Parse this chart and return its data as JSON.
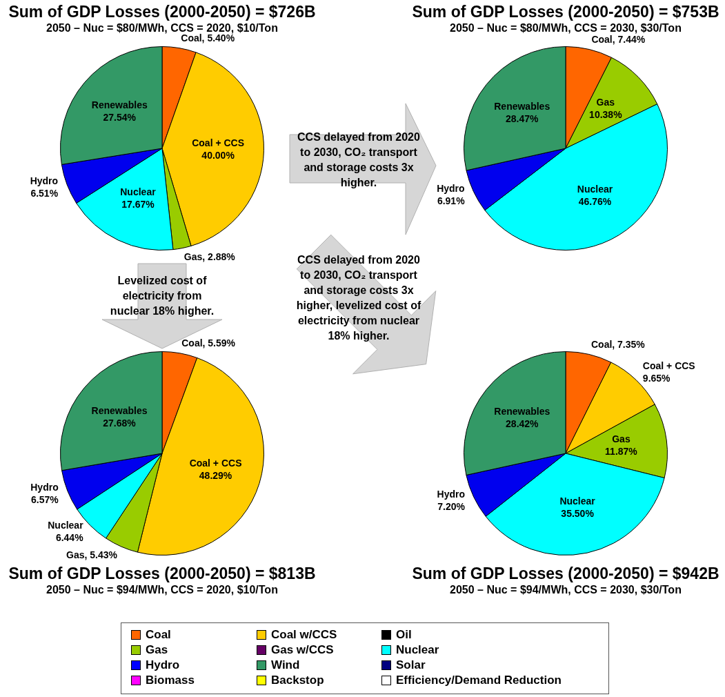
{
  "chart_data": [
    {
      "type": "pie",
      "title": "Sum of GDP Losses (2000-2050) = $726B",
      "subtitle": "2050 – Nuc = $80/MWh, CCS = 2020, $10/Ton",
      "categories": [
        "Coal",
        "Coal + CCS",
        "Gas",
        "Nuclear",
        "Hydro",
        "Renewables"
      ],
      "values": [
        5.4,
        40.0,
        2.88,
        17.67,
        6.51,
        27.54
      ],
      "value_labels": [
        "5.40%",
        "40.00%",
        "2.88%",
        "17.67%",
        "6.51%",
        "27.54%"
      ],
      "colors": [
        "#ff6600",
        "#ffcc00",
        "#99cc00",
        "#00ffff",
        "#0000ee",
        "#339966"
      ]
    },
    {
      "type": "pie",
      "title": "Sum of GDP Losses (2000-2050) = $753B",
      "subtitle": "2050 – Nuc = $80/MWh, CCS = 2030, $30/Ton",
      "categories": [
        "Coal",
        "Gas",
        "Nuclear",
        "Hydro",
        "Renewables"
      ],
      "values": [
        7.44,
        10.38,
        46.76,
        6.91,
        28.47
      ],
      "value_labels": [
        "7.44%",
        "10.38%",
        "46.76%",
        "6.91%",
        "28.47%"
      ],
      "colors": [
        "#ff6600",
        "#99cc00",
        "#00ffff",
        "#0000ee",
        "#339966"
      ],
      "annotations": [
        "CCS delayed from 2020 to 2030, CO₂ transport and storage costs 3x higher."
      ]
    },
    {
      "type": "pie",
      "title": "Sum of GDP Losses (2000-2050) = $813B",
      "subtitle": "2050 – Nuc = $94/MWh, CCS = 2020, $10/Ton",
      "categories": [
        "Coal",
        "Coal + CCS",
        "Gas",
        "Nuclear",
        "Hydro",
        "Renewables"
      ],
      "values": [
        5.59,
        48.29,
        5.43,
        6.44,
        6.57,
        27.68
      ],
      "value_labels": [
        "5.59%",
        "48.29%",
        "5.43%",
        "6.44%",
        "6.57%",
        "27.68%"
      ],
      "colors": [
        "#ff6600",
        "#ffcc00",
        "#99cc00",
        "#00ffff",
        "#0000ee",
        "#339966"
      ],
      "annotations": [
        "Levelized cost of electricity from nuclear 18% higher."
      ]
    },
    {
      "type": "pie",
      "title": "Sum of GDP Losses (2000-2050) = $942B",
      "subtitle": "2050 – Nuc = $94/MWh, CCS = 2030, $30/Ton",
      "categories": [
        "Coal",
        "Coal + CCS",
        "Gas",
        "Nuclear",
        "Hydro",
        "Renewables"
      ],
      "values": [
        7.35,
        9.65,
        11.87,
        35.5,
        7.2,
        28.42
      ],
      "value_labels": [
        "7.35%",
        "9.65%",
        "11.87%",
        "35.50%",
        "7.20%",
        "28.42%"
      ],
      "colors": [
        "#ff6600",
        "#ffcc00",
        "#99cc00",
        "#00ffff",
        "#0000ee",
        "#339966"
      ],
      "annotations": [
        "CCS delayed from 2020 to 2030, CO₂ transport and storage costs 3x higher, levelized cost of electricity from nuclear 18% higher."
      ]
    },
    {
      "type": "other",
      "categories": [
        "Coal",
        "Gas",
        "Hydro",
        "Biomass",
        "Coal w/CCS",
        "Gas w/CCS",
        "Wind",
        "Backstop",
        "Oil",
        "Nuclear",
        "Solar",
        "Efficiency/Demand Reduction"
      ],
      "colors": [
        "#ff6600",
        "#99cc00",
        "#0000ff",
        "#ff00ff",
        "#ffcc00",
        "#660066",
        "#339966",
        "#ffff00",
        "#000000",
        "#00ffff",
        "#000080",
        "#ffffff"
      ]
    }
  ]
}
